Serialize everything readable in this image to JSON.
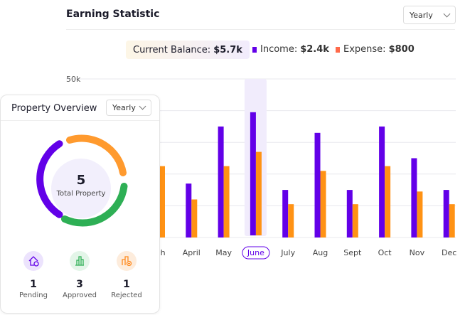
{
  "header": {
    "title": "Earning Statistic",
    "period": "Yearly"
  },
  "summary": {
    "balance_label": "Current Balance:",
    "balance_value": "$5.7k",
    "income_label": "Income:",
    "income_value": "$2.4k",
    "expense_label": "Expense:",
    "expense_value": "$800"
  },
  "colors": {
    "income": "#6200e8",
    "expense": "#ff9214",
    "highlight": "#f1ecfc",
    "pending": "#6200e8",
    "approved": "#2eaf55",
    "rejected": "#ff9a2e"
  },
  "chart_data": {
    "type": "bar",
    "categories": [
      "March",
      "April",
      "May",
      "June",
      "July",
      "Aug",
      "Sept",
      "Oct",
      "Nov",
      "Dec"
    ],
    "category_labels": [
      "rch",
      "April",
      "May",
      "June",
      "July",
      "Aug",
      "Sept",
      "Oct",
      "Nov",
      "Dec"
    ],
    "highlighted": "June",
    "y_ticks": [
      "50k"
    ],
    "ylim": [
      0,
      50000
    ],
    "grid": true,
    "series": [
      {
        "name": "Income",
        "values": [
          null,
          17000,
          35000,
          39500,
          15000,
          33000,
          15000,
          35000,
          25000,
          15000
        ]
      },
      {
        "name": "Expense",
        "values": [
          22500,
          12000,
          22500,
          27000,
          10500,
          21000,
          10500,
          22500,
          14500,
          10500
        ]
      }
    ]
  },
  "property": {
    "title": "Property Overview",
    "period": "Yearly",
    "total": "5",
    "total_label": "Total Property",
    "stats": [
      {
        "value": "1",
        "label": "Pending",
        "icon": "house-clock-icon"
      },
      {
        "value": "3",
        "label": "Approved",
        "icon": "building-icon"
      },
      {
        "value": "1",
        "label": "Rejected",
        "icon": "building-x-icon"
      }
    ]
  }
}
